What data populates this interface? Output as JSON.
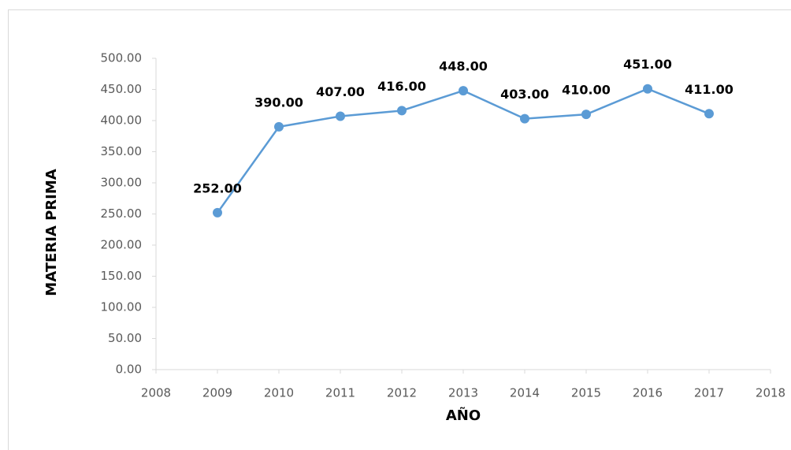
{
  "chart_data": {
    "type": "line",
    "x_label": "AÑO",
    "y_label": "MATERIA PRIMA",
    "x": [
      2009,
      2010,
      2011,
      2012,
      2013,
      2014,
      2015,
      2016,
      2017
    ],
    "series": [
      {
        "color": "#5b9bd5",
        "values": [
          252,
          390,
          407,
          416,
          448,
          403,
          410,
          451,
          411
        ],
        "value_labels": [
          "252.00",
          "390.00",
          "407.00",
          "416.00",
          "448.00",
          "403.00",
          "410.00",
          "451.00",
          "411.00"
        ]
      }
    ],
    "xlim": [
      2008,
      2018
    ],
    "xticks": [
      2008,
      2009,
      2010,
      2011,
      2012,
      2013,
      2014,
      2015,
      2016,
      2017,
      2018
    ],
    "ylim": [
      0,
      500
    ],
    "yticks": [
      {
        "value": 0,
        "label": "0.00"
      },
      {
        "value": 50,
        "label": "50.00"
      },
      {
        "value": 100,
        "label": "100.00"
      },
      {
        "value": 150,
        "label": "150.00"
      },
      {
        "value": 200,
        "label": "200.00"
      },
      {
        "value": 250,
        "label": "250.00"
      },
      {
        "value": 300,
        "label": "300.00"
      },
      {
        "value": 350,
        "label": "350.00"
      },
      {
        "value": 400,
        "label": "400.00"
      },
      {
        "value": 450,
        "label": "450.00"
      },
      {
        "value": 500,
        "label": "500.00"
      }
    ],
    "grid": false
  }
}
